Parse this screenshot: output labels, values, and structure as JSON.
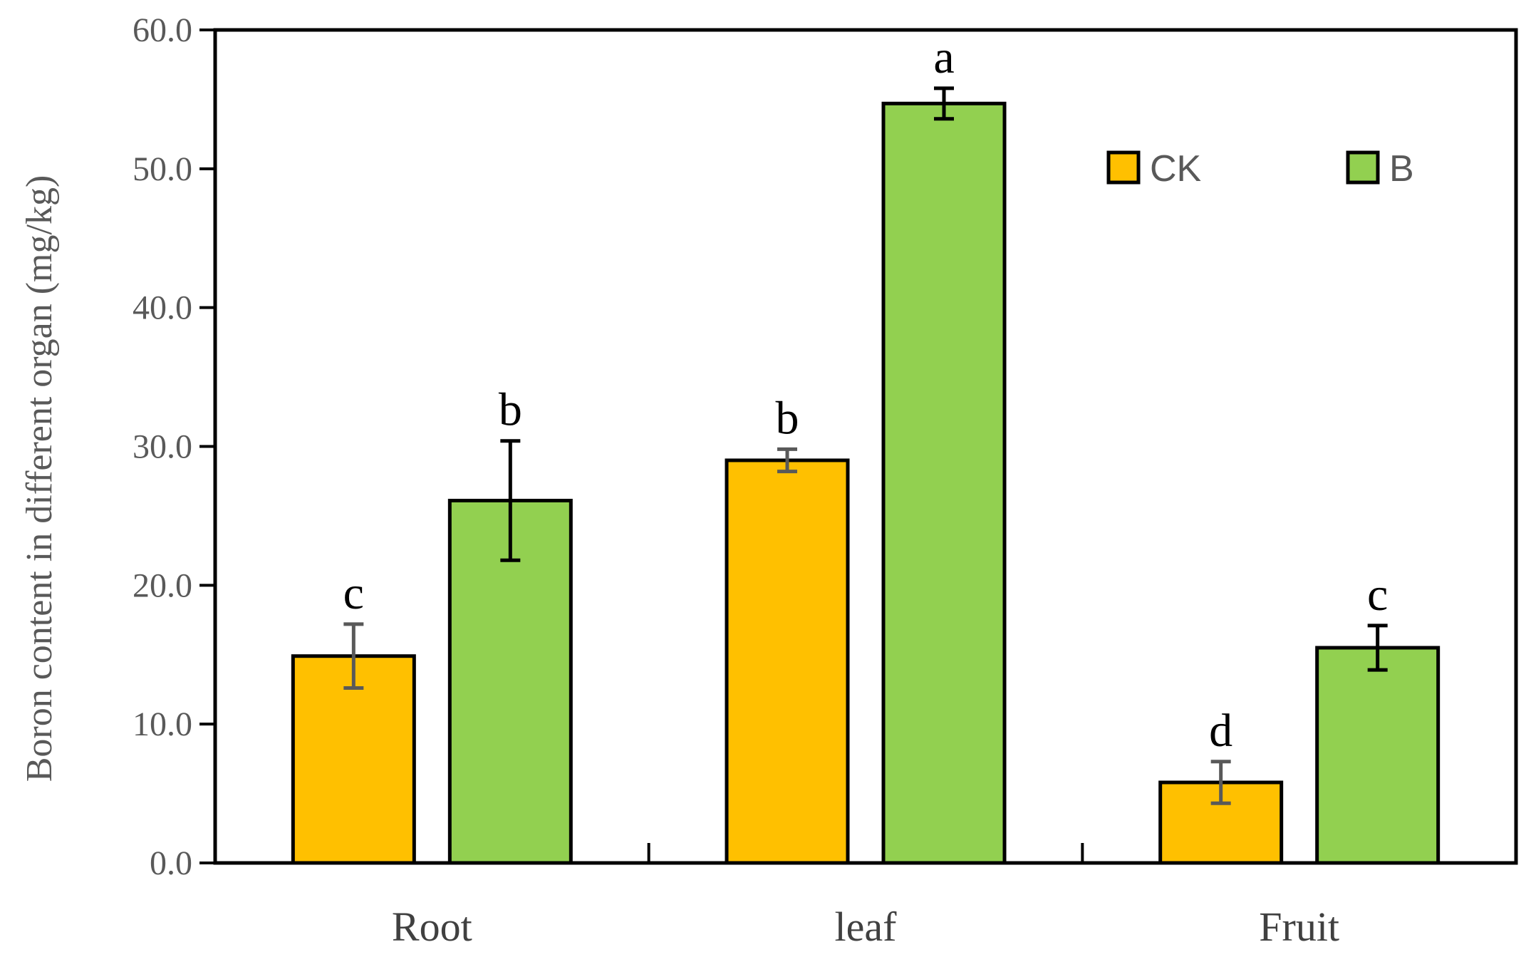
{
  "chart_data": {
    "type": "bar",
    "ylabel": "Boron content in different organ (mg/kg)",
    "xlabel": "",
    "ylim": [
      0,
      60
    ],
    "yticks": [
      "0.0",
      "10.0",
      "20.0",
      "30.0",
      "40.0",
      "50.0",
      "60.0"
    ],
    "categories": [
      "Root",
      "leaf",
      "Fruit"
    ],
    "series": [
      {
        "name": "CK",
        "color": "#FFC000",
        "values": [
          14.9,
          29.0,
          5.8
        ],
        "errors": [
          2.3,
          0.8,
          1.5
        ],
        "letters": [
          "c",
          "b",
          "d"
        ],
        "error_color": "#595959"
      },
      {
        "name": "B",
        "color": "#92D050",
        "values": [
          26.1,
          54.7,
          15.5
        ],
        "errors": [
          4.3,
          1.1,
          1.6
        ],
        "letters": [
          "b",
          "a",
          "c"
        ],
        "error_color": "#000000"
      }
    ],
    "legend": "top-right",
    "grid": false
  }
}
